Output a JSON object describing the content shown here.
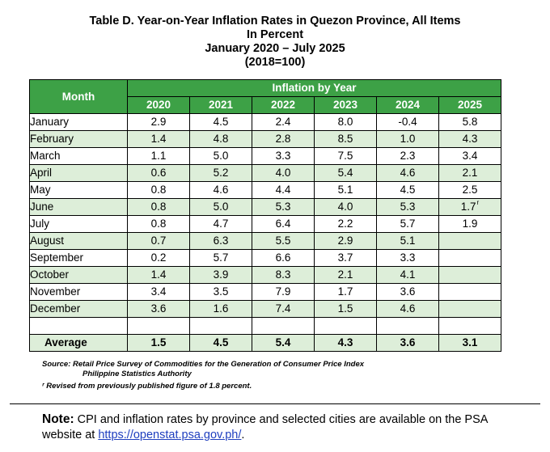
{
  "title": {
    "line1": "Table D. Year-on-Year Inflation Rates in Quezon Province, All Items",
    "line2": "In Percent",
    "line3": "January 2020 – July 2025",
    "line4": "(2018=100)"
  },
  "table": {
    "month_header": "Month",
    "group_header": "Inflation by Year",
    "years": [
      "2020",
      "2021",
      "2022",
      "2023",
      "2024",
      "2025"
    ],
    "rows": [
      {
        "month": "January",
        "values": [
          "2.9",
          "4.5",
          "2.4",
          "8.0",
          "-0.4",
          "5.8"
        ]
      },
      {
        "month": "February",
        "values": [
          "1.4",
          "4.8",
          "2.8",
          "8.5",
          "1.0",
          "4.3"
        ]
      },
      {
        "month": "March",
        "values": [
          "1.1",
          "5.0",
          "3.3",
          "7.5",
          "2.3",
          "3.4"
        ]
      },
      {
        "month": "April",
        "values": [
          "0.6",
          "5.2",
          "4.0",
          "5.4",
          "4.6",
          "2.1"
        ]
      },
      {
        "month": "May",
        "values": [
          "0.8",
          "4.6",
          "4.4",
          "5.1",
          "4.5",
          "2.5"
        ]
      },
      {
        "month": "June",
        "values": [
          "0.8",
          "5.0",
          "5.3",
          "4.0",
          "5.3",
          "1.7"
        ],
        "revised_mark": "r"
      },
      {
        "month": "July",
        "values": [
          "0.8",
          "4.7",
          "6.4",
          "2.2",
          "5.7",
          "1.9"
        ]
      },
      {
        "month": "August",
        "values": [
          "0.7",
          "6.3",
          "5.5",
          "2.9",
          "5.1",
          ""
        ]
      },
      {
        "month": "September",
        "values": [
          "0.2",
          "5.7",
          "6.6",
          "3.7",
          "3.3",
          ""
        ]
      },
      {
        "month": "October",
        "values": [
          "1.4",
          "3.9",
          "8.3",
          "2.1",
          "4.1",
          ""
        ]
      },
      {
        "month": "November",
        "values": [
          "3.4",
          "3.5",
          "7.9",
          "1.7",
          "3.6",
          ""
        ]
      },
      {
        "month": "December",
        "values": [
          "3.6",
          "1.6",
          "7.4",
          "1.5",
          "4.6",
          ""
        ]
      }
    ],
    "average": {
      "label": "Average",
      "values": [
        "1.5",
        "4.5",
        "5.4",
        "4.3",
        "3.6",
        "3.1"
      ]
    }
  },
  "source": {
    "line1": "Source: Retail Price Survey of Commodities for the Generation of Consumer Price Index",
    "line2": "Philippine Statistics Authority",
    "revised_note": "ʳ Revised from previously published figure of 1.8 percent."
  },
  "note": {
    "label": "Note:",
    "text": " CPI and inflation rates by province and selected cities are available on the PSA website at ",
    "link_text": "https://openstat.psa.gov.ph/",
    "trailing": "."
  },
  "colors": {
    "header_green": "#3da146",
    "stripe_green": "#ddeed9",
    "link_blue": "#1f3fbf"
  }
}
